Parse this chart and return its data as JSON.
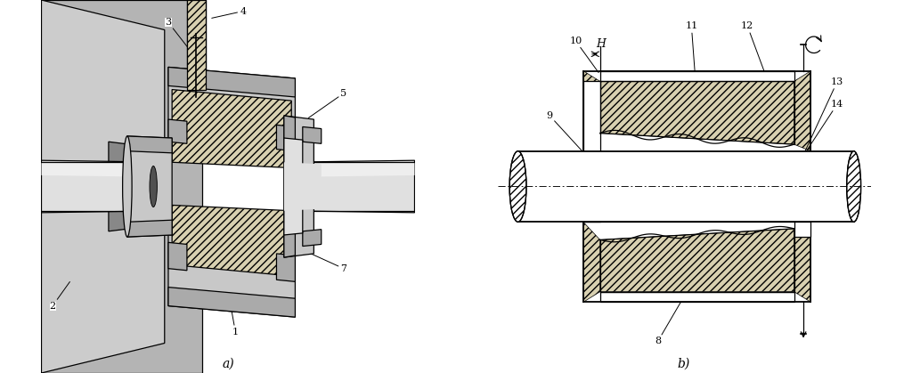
{
  "fig_width": 10.24,
  "fig_height": 4.19,
  "dpi": 100,
  "bg_color": "#ffffff",
  "label_a": "a)",
  "label_b": "b)",
  "H_label": "H",
  "hatch": "////",
  "lw": 0.9
}
